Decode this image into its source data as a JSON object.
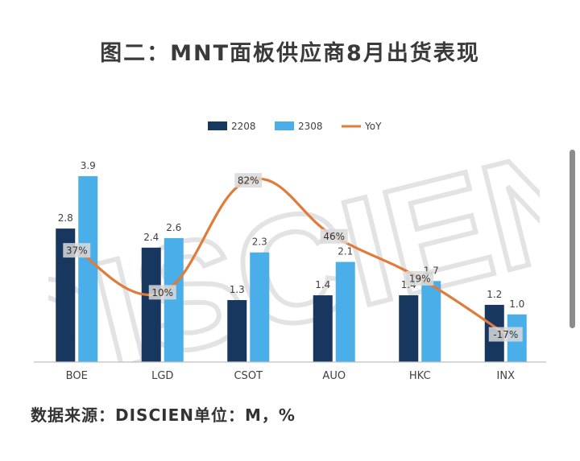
{
  "title": "图二：MNT面板供应商8月出货表现",
  "source": "数据来源：DISCIEN单位：M，%",
  "watermark_text": "DISCIEN",
  "colors": {
    "series_2208": "#17375e",
    "series_2308": "#4aaee8",
    "yoy": "#e07b39",
    "axis": "#bfbfbf",
    "text": "#404040",
    "label_bg": "#d9d9d9",
    "watermark": "#e6e6e6"
  },
  "chart_data": {
    "type": "bar",
    "categories": [
      "BOE",
      "LGD",
      "CSOT",
      "AUO",
      "HKC",
      "INX"
    ],
    "series": [
      {
        "name": "2208",
        "values": [
          2.8,
          2.4,
          1.3,
          1.4,
          1.4,
          1.2
        ]
      },
      {
        "name": "2308",
        "values": [
          3.9,
          2.6,
          2.3,
          2.1,
          1.7,
          1.0
        ]
      }
    ],
    "line_series": {
      "name": "YoY",
      "values": [
        37,
        10,
        82,
        46,
        19,
        -17
      ],
      "labels": [
        "37%",
        "10%",
        "82%",
        "46%",
        "19%",
        "-17%"
      ]
    },
    "ylim": [
      0,
      4.0
    ],
    "yoy_range": [
      -40,
      110
    ],
    "grid": false,
    "legend": "top-center"
  }
}
